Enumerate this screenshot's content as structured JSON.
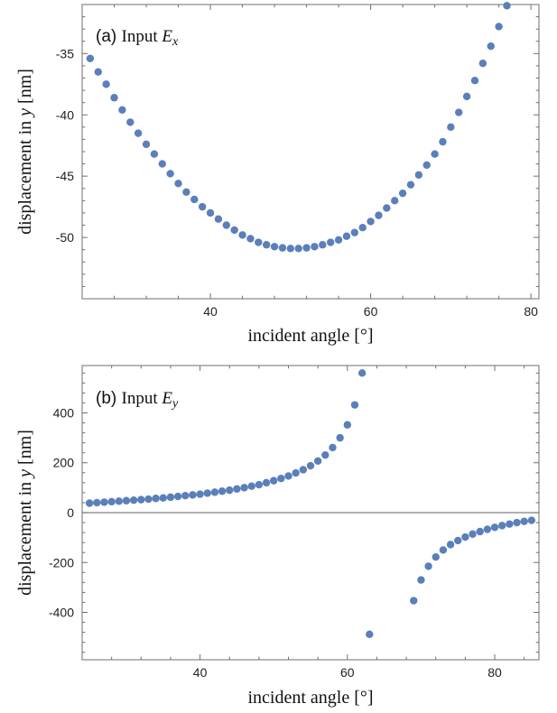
{
  "chart_data": [
    {
      "type": "scatter",
      "panel_tag": "(a)",
      "title_word": "Input",
      "title_var": "E",
      "title_sub": "x",
      "xlabel": "incident angle [°]",
      "ylabel_pre": "displacement in",
      "ylabel_var": "y",
      "ylabel_post": "[nm]",
      "xlim": [
        24,
        81
      ],
      "ylim": [
        -55,
        -31
      ],
      "xticks": [
        40,
        60,
        80
      ],
      "yticks": [
        -35,
        -40,
        -45,
        -50
      ],
      "ytick_labels": [
        "-35",
        "-40",
        "-45",
        "-50"
      ],
      "marker_color": "#5b7fb9",
      "series": [
        {
          "name": "Input Ex",
          "x": [
            25,
            26,
            27,
            28,
            29,
            30,
            31,
            32,
            33,
            34,
            35,
            36,
            37,
            38,
            39,
            40,
            41,
            42,
            43,
            44,
            45,
            46,
            47,
            48,
            49,
            50,
            51,
            52,
            53,
            54,
            55,
            56,
            57,
            58,
            59,
            60,
            61,
            62,
            63,
            64,
            65,
            66,
            67,
            68,
            69,
            70,
            71,
            72,
            73,
            74,
            75,
            76,
            77
          ],
          "y": [
            -35.4,
            -36.5,
            -37.5,
            -38.6,
            -39.6,
            -40.6,
            -41.5,
            -42.4,
            -43.2,
            -44.0,
            -44.8,
            -45.6,
            -46.3,
            -46.9,
            -47.5,
            -48.0,
            -48.5,
            -49.0,
            -49.4,
            -49.8,
            -50.1,
            -50.4,
            -50.6,
            -50.75,
            -50.85,
            -50.9,
            -50.9,
            -50.85,
            -50.75,
            -50.6,
            -50.4,
            -50.2,
            -49.9,
            -49.6,
            -49.2,
            -48.7,
            -48.2,
            -47.6,
            -47.0,
            -46.4,
            -45.7,
            -44.9,
            -44.1,
            -43.2,
            -42.2,
            -41.0,
            -39.8,
            -38.5,
            -37.2,
            -35.8,
            -34.4,
            -32.8,
            -31.1
          ]
        }
      ]
    },
    {
      "type": "scatter",
      "panel_tag": "(b)",
      "title_word": "Input",
      "title_var": "E",
      "title_sub": "y",
      "xlabel": "incident angle [°]",
      "ylabel_pre": "displacement in",
      "ylabel_var": "y",
      "ylabel_post": "[nm]",
      "xlim": [
        24,
        86
      ],
      "ylim": [
        -590,
        590
      ],
      "xticks": [
        40,
        60,
        80
      ],
      "yticks": [
        400,
        200,
        0,
        -200,
        -400
      ],
      "ytick_labels": [
        "400",
        "200",
        "0",
        "-200",
        "-400"
      ],
      "zero_line": true,
      "marker_color": "#5b7fb9",
      "series": [
        {
          "name": "Input Ey",
          "x": [
            25,
            26,
            27,
            28,
            29,
            30,
            31,
            32,
            33,
            34,
            35,
            36,
            37,
            38,
            39,
            40,
            41,
            42,
            43,
            44,
            45,
            46,
            47,
            48,
            49,
            50,
            51,
            52,
            53,
            54,
            55,
            56,
            57,
            58,
            59,
            60,
            61,
            62,
            63,
            69,
            70,
            71,
            72,
            73,
            74,
            75,
            76,
            77,
            78,
            79,
            80,
            81,
            82,
            83,
            84,
            85
          ],
          "y": [
            38,
            40,
            42,
            44,
            46,
            48,
            50,
            52,
            54,
            57,
            59,
            62,
            65,
            68,
            71,
            74,
            78,
            82,
            86,
            90,
            95,
            100,
            106,
            112,
            120,
            128,
            137,
            147,
            159,
            172,
            188,
            207,
            231,
            261,
            300,
            352,
            432,
            560,
            -488,
            -353,
            -270,
            -215,
            -178,
            -150,
            -128,
            -112,
            -98,
            -86,
            -76,
            -67,
            -59,
            -52,
            -46,
            -40,
            -35,
            -31
          ]
        }
      ]
    }
  ]
}
